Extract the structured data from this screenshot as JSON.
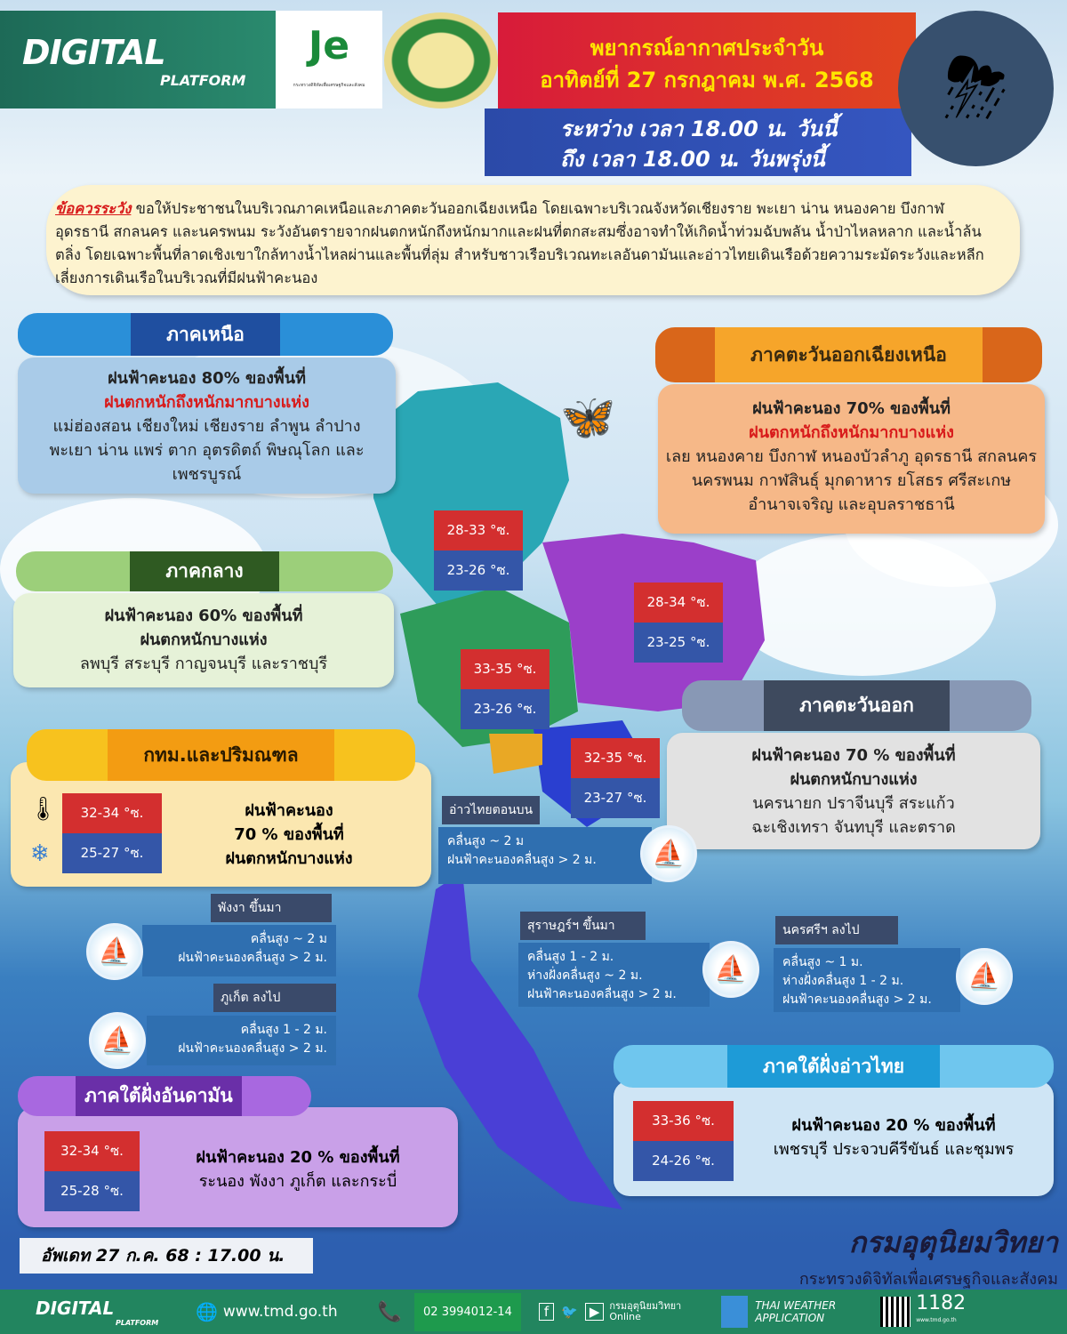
{
  "header": {
    "brand": "DIGITAL",
    "brand_sub": "PLATFORM",
    "ministry_text": "กระทรวงดิจิทัลเพื่อเศรษฐกิจและสังคม",
    "title": "พยากรณ์อากาศประจำวัน",
    "date": "อาทิตย์ที่ 27 กรกฎาคม พ.ศ. 2568",
    "period_1": "ระหว่าง เวลา 18.00 น. วันนี้",
    "period_2": "ถึง เวลา 18.00 น. วันพรุ่งนี้",
    "weather_icon": "thunderstorm-icon"
  },
  "warning": {
    "label": "ข้อควรระวัง",
    "text": "ขอให้ประชาชนในบริเวณภาคเหนือและภาคตะวันออกเฉียงเหนือ โดยเฉพาะบริเวณจังหวัดเชียงราย พะเยา น่าน หนองคาย บึงกาฬ อุดรธานี สกลนคร และนครพนม ระวังอันตรายจากฝนตกหนักถึงหนักมากและฝนที่ตกสะสมซึ่งอาจทำให้เกิดน้ำท่วมฉับพลัน น้ำป่าไหลหลาก และน้ำล้นตลิ่ง โดยเฉพาะพื้นที่ลาดเชิงเขาใกล้ทางน้ำไหลผ่านและพื้นที่ลุ่ม สำหรับชาวเรือบริเวณทะเลอันดามันและอ่าวไทยเดินเรือด้วยความระมัดระวังและหลีกเลี่ยงการเดินเรือในบริเวณที่มีฝนฟ้าคะนอง"
  },
  "regions": {
    "north": {
      "title": "ภาคเหนือ",
      "rain": "ฝนฟ้าคะนอง 80% ของพื้นที่",
      "heavy": "ฝนตกหนักถึงหนักมากบางแห่ง",
      "areas": "แม่ฮ่องสอน เชียงใหม่ เชียงราย ลำพูน ลำปาง พะเยา น่าน แพร่ ตาก อุตรดิตถ์ พิษณุโลก และเพชรบูรณ์",
      "max": "28-33 °ซ.",
      "min": "23-26 °ซ.",
      "color": "#1f5fb5"
    },
    "northeast": {
      "title": "ภาคตะวันออกเฉียงเหนือ",
      "rain": "ฝนฟ้าคะนอง 70% ของพื้นที่",
      "heavy": "ฝนตกหนักถึงหนักมากบางแห่ง",
      "areas": "เลย หนองคาย บึงกาฬ หนองบัวลำภู อุดรธานี สกลนคร นครพนม กาฬสินธุ์ มุกดาหาร ยโสธร ศรีสะเกษ อำนาจเจริญ และอุบลราชธานี",
      "max": "28-34 °ซ.",
      "min": "23-25 °ซ.",
      "color": "#e07a1a"
    },
    "central": {
      "title": "ภาคกลาง",
      "rain": "ฝนฟ้าคะนอง 60% ของพื้นที่",
      "heavy": "ฝนตกหนักบางแห่ง",
      "areas": "ลพบุรี สระบุรี กาญจนบุรี และราชบุรี",
      "max": "33-35 °ซ.",
      "min": "23-26 °ซ.",
      "color": "#3f6a2a"
    },
    "bangkok": {
      "title": "กทม.และปริมณฑล",
      "rain": "ฝนฟ้าคะนอง",
      "percent": "70 % ของพื้นที่",
      "heavy": "ฝนตกหนักบางแห่ง",
      "max": "32-34 °ซ.",
      "min": "25-27 °ซ.",
      "color": "#f39c12"
    },
    "east": {
      "title": "ภาคตะวันออก",
      "rain": "ฝนฟ้าคะนอง 70 % ของพื้นที่",
      "heavy": "ฝนตกหนักบางแห่ง",
      "areas": "นครนายก ปราจีนบุรี สระแก้ว ฉะเชิงเทรา จันทบุรี และตราด",
      "max": "32-35 °ซ.",
      "min": "23-27 °ซ.",
      "color": "#4a5568"
    },
    "south_andaman": {
      "title": "ภาคใต้ฝั่งอันดามัน",
      "rain": "ฝนฟ้าคะนอง 20 % ของพื้นที่",
      "areas": "ระนอง พังงา ภูเก็ต และกระบี่",
      "max": "32-34 °ซ.",
      "min": "25-28 °ซ.",
      "color": "#8e44c9"
    },
    "south_gulf": {
      "title": "ภาคใต้ฝั่งอ่าวไทย",
      "rain": "ฝนฟ้าคะนอง 20 % ของพื้นที่",
      "areas": "เพชรบุรี ประจวบคีรีขันธ์ และชุมพร",
      "max": "33-36 °ซ.",
      "min": "24-26 °ซ.",
      "color": "#1e9bd7"
    }
  },
  "sea": {
    "upper_gulf": {
      "label": "อ่าวไทยตอนบน",
      "l1": "คลื่นสูง ~ 2 ม",
      "l2": "ฝนฟ้าคะนองคลื่นสูง > 2 ม."
    },
    "phangnga": {
      "label": "พังงา ขึ้นมา",
      "l1": "คลื่นสูง ~ 2 ม",
      "l2": "ฝนฟ้าคะนองคลื่นสูง > 2 ม."
    },
    "phuket": {
      "label": "ภูเก็ต ลงไป",
      "l1": "คลื่นสูง 1 - 2 ม.",
      "l2": "ฝนฟ้าคะนองคลื่นสูง > 2 ม."
    },
    "surat": {
      "label": "สุราษฎร์ฯ ขึ้นมา",
      "l1": "คลื่นสูง 1 - 2 ม.",
      "l2": "ห่างฝั่งคลื่นสูง ~ 2 ม.",
      "l3": "ฝนฟ้าคะนองคลื่นสูง > 2 ม."
    },
    "nakhon": {
      "label": "นครศรีฯ ลงไป",
      "l1": "คลื่นสูง ~ 1 ม.",
      "l2": "ห่างฝั่งคลื่นสูง 1 - 2 ม.",
      "l3": "ฝนฟ้าคะนองคลื่นสูง > 2 ม."
    }
  },
  "update": "อัพเดท 27 ก.ค. 68 : 17.00 น.",
  "agency": {
    "name": "กรมอุตุนิยมวิทยา",
    "ministry": "กระทรวงดิจิทัลเพื่อเศรษฐกิจและสังคม"
  },
  "footer": {
    "brand": "DIGITAL",
    "brand_sub": "PLATFORM",
    "website": "www.tmd.go.th",
    "phone": "02 3994012-14",
    "social": "กรมอุตุนิยมวิทยา",
    "social_sub": "Online",
    "app_1": "THAI WEATHER",
    "app_2": "APPLICATION",
    "hotline": "1182",
    "qr_caption": "www.tmd.go.th"
  }
}
